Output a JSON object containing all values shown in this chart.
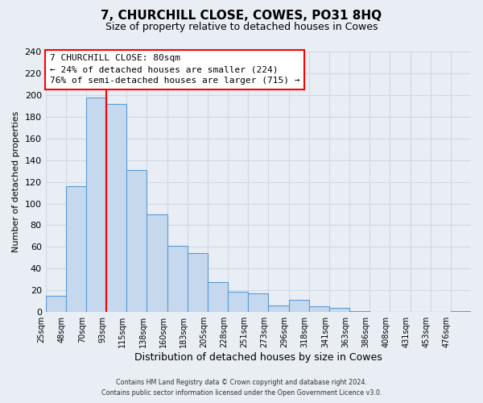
{
  "title": "7, CHURCHILL CLOSE, COWES, PO31 8HQ",
  "subtitle": "Size of property relative to detached houses in Cowes",
  "xlabel": "Distribution of detached houses by size in Cowes",
  "ylabel": "Number of detached properties",
  "footer_line1": "Contains HM Land Registry data © Crown copyright and database right 2024.",
  "footer_line2": "Contains public sector information licensed under the Open Government Licence v3.0.",
  "bin_labels": [
    "25sqm",
    "48sqm",
    "70sqm",
    "93sqm",
    "115sqm",
    "138sqm",
    "160sqm",
    "183sqm",
    "205sqm",
    "228sqm",
    "251sqm",
    "273sqm",
    "296sqm",
    "318sqm",
    "341sqm",
    "363sqm",
    "386sqm",
    "408sqm",
    "431sqm",
    "453sqm",
    "476sqm"
  ],
  "bar_heights": [
    15,
    116,
    198,
    192,
    131,
    90,
    61,
    54,
    28,
    19,
    17,
    6,
    11,
    5,
    4,
    1,
    0,
    0,
    0,
    0,
    1
  ],
  "bar_color": "#c5d8ed",
  "bar_edge_color": "#5b9bd5",
  "grid_color": "#d0d8e4",
  "background_color": "#e8eef4",
  "annotation_title": "7 CHURCHILL CLOSE: 80sqm",
  "annotation_line1": "← 24% of detached houses are smaller (224)",
  "annotation_line2": "76% of semi-detached houses are larger (715) →",
  "ylim": [
    0,
    240
  ],
  "yticks": [
    0,
    20,
    40,
    60,
    80,
    100,
    120,
    140,
    160,
    180,
    200,
    220,
    240
  ],
  "red_line_bin_index": 3,
  "title_fontsize": 11,
  "subtitle_fontsize": 9,
  "ylabel_fontsize": 8,
  "xlabel_fontsize": 9,
  "tick_fontsize": 8,
  "xtick_fontsize": 7
}
